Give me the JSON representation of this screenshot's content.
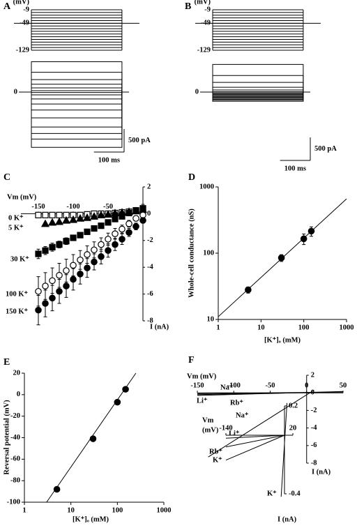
{
  "chart_data": [
    {
      "type": "trace",
      "panel": "A",
      "protocol_label": "(mV)",
      "protocol_ticks": [
        -9,
        -49,
        -129
      ],
      "holding": -49,
      "steps": [
        -9,
        -17,
        -25,
        -33,
        -41,
        -49,
        -57,
        -65,
        -73,
        -81,
        -89,
        -97,
        -105,
        -113,
        -121,
        -129
      ],
      "duration": 300,
      "yticks": [
        0
      ],
      "values": [
        660,
        430,
        270,
        170,
        90,
        30,
        -10,
        -60,
        -150,
        -260,
        -390,
        -560,
        -760,
        -900,
        -1020,
        -1200
      ],
      "scale_y": {
        "value": 500,
        "label": "500 pA"
      },
      "scale_x": {
        "value": 100,
        "label": "100 ms"
      }
    },
    {
      "type": "trace",
      "panel": "B",
      "protocol_label": "(mV)",
      "protocol_ticks": [
        -9,
        -49,
        -129
      ],
      "holding": -49,
      "steps": [
        -9,
        -17,
        -25,
        -33,
        -41,
        -49,
        -57,
        -65,
        -73,
        -81,
        -89,
        -97,
        -105,
        -113,
        -121,
        -129
      ],
      "duration": 300,
      "yticks": [
        0
      ],
      "values": [
        600,
        360,
        210,
        105,
        45,
        10,
        -15,
        -35,
        -55,
        -75,
        -95,
        -115,
        -135,
        -155,
        -175,
        -200
      ],
      "scale_y": {
        "value": 500,
        "label": "500 pA"
      },
      "scale_x": {
        "value": 100,
        "label": "100 ms"
      }
    },
    {
      "type": "scatter",
      "panel": "C",
      "xlabel": "Vm (mV)",
      "ylabel": "I (nA)",
      "xlim": [
        -175,
        0
      ],
      "ylim": [
        -8,
        2
      ],
      "xticks": [
        -150,
        -100,
        -50
      ],
      "yticks": [
        2,
        0,
        -2,
        -4,
        -6,
        -8
      ],
      "x": [
        -150,
        -140,
        -130,
        -120,
        -110,
        -100,
        -90,
        -80,
        -70,
        -60,
        -50,
        -40,
        -30,
        -20,
        -10,
        0
      ],
      "series": [
        {
          "name": "0 K⁺",
          "marker": "square-open",
          "values": [
            -0.1,
            -0.1,
            -0.1,
            -0.1,
            -0.1,
            -0.1,
            -0.1,
            -0.05,
            0,
            0,
            0,
            0.05,
            0.1,
            0.15,
            0.2,
            0.3
          ]
        },
        {
          "name": "5 K⁺",
          "marker": "triangle-filled",
          "values": [
            null,
            -0.75,
            -0.65,
            -0.6,
            -0.5,
            -0.45,
            -0.35,
            -0.3,
            -0.2,
            -0.1,
            -0.05,
            0.05,
            0.1,
            0.15,
            0.2,
            0.3
          ]
        },
        {
          "name": "30 K⁺",
          "marker": "square-filled",
          "values": [
            -3.0,
            -2.75,
            -2.5,
            -2.3,
            -2.05,
            -1.8,
            -1.6,
            -1.35,
            -1.1,
            -0.9,
            -0.65,
            -0.4,
            -0.2,
            0.05,
            0.25,
            0.4
          ],
          "errors": [
            0.35,
            0.3,
            0.3,
            0.25,
            0.25,
            0.2,
            0.2,
            0.2,
            0.15,
            0.15,
            0.15,
            0.1,
            0.1,
            0.1,
            0.1,
            0.3
          ]
        },
        {
          "name": "100 K⁺",
          "marker": "circle-open",
          "values": [
            -5.8,
            -5.4,
            -5.0,
            -4.6,
            -4.25,
            -3.85,
            -3.45,
            -3.05,
            -2.7,
            -2.3,
            -1.9,
            -1.5,
            -1.15,
            -0.75,
            -0.35,
            -0.1
          ],
          "errors": [
            1.1,
            1.0,
            0.95,
            0.9,
            0.85,
            0.8,
            0.7,
            0.65,
            0.6,
            0.5,
            0.45,
            0.4,
            0.3,
            0.25,
            0.2,
            0.15
          ]
        },
        {
          "name": "150 K⁺",
          "marker": "circle-filled",
          "values": [
            -7.2,
            -6.7,
            -6.3,
            -5.8,
            -5.4,
            -4.9,
            -4.5,
            -4.05,
            -3.6,
            -3.2,
            -2.75,
            -2.3,
            -1.9,
            -1.4,
            -0.95,
            -0.5
          ],
          "errors": [
            1.1,
            1.0,
            0.95,
            0.9,
            0.85,
            0.8,
            0.75,
            0.7,
            0.6,
            0.55,
            0.5,
            0.45,
            0.4,
            0.3,
            0.25,
            0.2
          ]
        }
      ]
    },
    {
      "type": "scatter",
      "panel": "D",
      "xlabel": "[K⁺]ₒ (mM)",
      "ylabel": "Whole-cell conductance (nS)",
      "xlog": true,
      "ylog": true,
      "xlim": [
        1,
        1000
      ],
      "ylim": [
        10,
        1000
      ],
      "xticks": [
        1,
        10,
        100,
        1000
      ],
      "yticks": [
        10,
        100,
        1000
      ],
      "marker": "circle-filled",
      "x": [
        5,
        30,
        100,
        150
      ],
      "values": [
        28,
        85,
        165,
        215
      ],
      "errors": [
        3,
        10,
        30,
        35
      ],
      "fit": {
        "x": [
          1,
          1000
        ],
        "values": [
          11,
          660
        ]
      }
    },
    {
      "type": "scatter",
      "panel": "E",
      "xlabel": "[K⁺]ₒ (mM)",
      "ylabel": "Reversal potential (mV)",
      "xlog": true,
      "xlim": [
        1,
        1000
      ],
      "ylim": [
        -100,
        20
      ],
      "xticks": [
        1,
        10,
        100,
        1000
      ],
      "yticks": [
        20,
        0,
        -20,
        -40,
        -60,
        -80,
        -100
      ],
      "marker": "circle-filled",
      "x": [
        5,
        30,
        100,
        150
      ],
      "values": [
        -88,
        -41,
        -7,
        5
      ],
      "fit": {
        "x": [
          3,
          250
        ],
        "values": [
          -100,
          20
        ]
      }
    },
    {
      "type": "line",
      "panel": "F",
      "xlabel": "Vm (mV)",
      "ylabel": "I (nA)",
      "xlim": [
        -150,
        50
      ],
      "ylim": [
        -8,
        2
      ],
      "xticks": [
        -150,
        -100,
        -50,
        0,
        50
      ],
      "yticks": [
        2,
        0,
        -2,
        -4,
        -6,
        -8
      ],
      "series": [
        {
          "name": "Na⁺",
          "color": "#555555",
          "x": [
            -150,
            50
          ],
          "values": [
            -0.1,
            0.1
          ]
        },
        {
          "name": "Li⁺",
          "color": "#555555",
          "x": [
            -150,
            50
          ],
          "values": [
            -0.3,
            0.15
          ]
        },
        {
          "name": "Rb⁺",
          "color": "#555555",
          "x": [
            -150,
            50
          ],
          "values": [
            -0.2,
            0.1
          ]
        },
        {
          "name": "K⁺",
          "color": "#888888",
          "x": [
            -135,
            10
          ],
          "values": [
            -7.3,
            0.3
          ]
        }
      ]
    },
    {
      "type": "line",
      "xlabel": "Vm",
      "xunit": "(mV)",
      "ylabel": "I (nA)",
      "xlim": [
        -140,
        20
      ],
      "ylim": [
        -0.4,
        0.2
      ],
      "xticks": [
        -140,
        20
      ],
      "yticks": [
        0.2,
        -0.4
      ],
      "series": [
        {
          "name": "Na⁺",
          "color": "#333333",
          "x": [
            -140,
            0
          ],
          "values": [
            -0.02,
            0
          ]
        },
        {
          "name": "Li⁺",
          "color": "#333333",
          "x": [
            -140,
            0
          ],
          "values": [
            -0.08,
            0
          ]
        },
        {
          "name": "Rb⁺",
          "color": "#333333",
          "x": [
            -140,
            0
          ],
          "values": [
            -0.17,
            0
          ]
        },
        {
          "name": "K⁺",
          "color": "#888888",
          "x": [
            -8,
            6
          ],
          "values": [
            -0.42,
            0.22
          ]
        }
      ]
    }
  ]
}
